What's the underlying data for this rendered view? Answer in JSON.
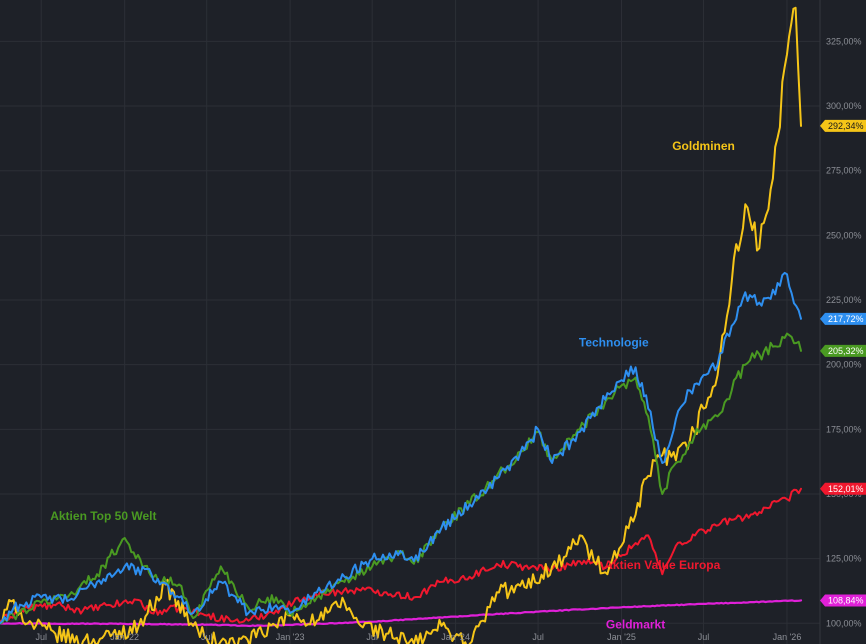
{
  "chart_data": {
    "type": "line",
    "title": "",
    "xlabel": "",
    "ylabel": "",
    "ylim": [
      92,
      341
    ],
    "xlim": [
      "2021-04-01",
      "2026-02-12"
    ],
    "grid": true,
    "y_ticks": [
      100,
      125,
      150,
      175,
      200,
      225,
      250,
      275,
      300,
      325
    ],
    "y_tick_labels": [
      "100,00%",
      "125,00%",
      "150,00%",
      "175,00%",
      "200,00%",
      "225,00%",
      "250,00%",
      "275,00%",
      "300,00%",
      "325,00%"
    ],
    "x_ticks": [
      {
        "date": "2021-07-01",
        "label": "Jul"
      },
      {
        "date": "2022-01-01",
        "label": "Jan '22"
      },
      {
        "date": "2022-07-01",
        "label": "Jul"
      },
      {
        "date": "2023-01-01",
        "label": "Jan '23"
      },
      {
        "date": "2023-07-01",
        "label": "Jul"
      },
      {
        "date": "2024-01-01",
        "label": "Jan '24"
      },
      {
        "date": "2024-07-01",
        "label": "Jul"
      },
      {
        "date": "2025-01-01",
        "label": "Jan '25"
      },
      {
        "date": "2025-07-01",
        "label": "Jul"
      },
      {
        "date": "2026-01-01",
        "label": "Jan '26"
      }
    ],
    "series": [
      {
        "name": "Geldmarkt",
        "color": "#e020d8",
        "last_label": "108,84%",
        "points": [
          [
            "2021-04-01",
            100
          ],
          [
            "2022-01-01",
            99.8
          ],
          [
            "2022-07-01",
            99.5
          ],
          [
            "2022-10-01",
            99
          ],
          [
            "2023-01-01",
            99.4
          ],
          [
            "2023-07-01",
            100.6
          ],
          [
            "2024-01-01",
            102.6
          ],
          [
            "2024-07-01",
            104.5
          ],
          [
            "2025-01-01",
            106.2
          ],
          [
            "2025-07-01",
            107.5
          ],
          [
            "2026-02-01",
            108.84
          ]
        ]
      },
      {
        "name": "Aktien Value Europa",
        "color": "#f0182e",
        "last_label": "152,01%",
        "points": [
          [
            "2021-04-01",
            101
          ],
          [
            "2021-06-01",
            106
          ],
          [
            "2021-08-01",
            107
          ],
          [
            "2021-10-01",
            105
          ],
          [
            "2021-12-01",
            107
          ],
          [
            "2022-02-01",
            109
          ],
          [
            "2022-03-01",
            104
          ],
          [
            "2022-05-01",
            106
          ],
          [
            "2022-07-01",
            103
          ],
          [
            "2022-09-01",
            101
          ],
          [
            "2022-10-01",
            101
          ],
          [
            "2022-12-01",
            105
          ],
          [
            "2023-02-01",
            110
          ],
          [
            "2023-04-01",
            112
          ],
          [
            "2023-06-01",
            113
          ],
          [
            "2023-08-01",
            112
          ],
          [
            "2023-10-01",
            110
          ],
          [
            "2023-12-01",
            116
          ],
          [
            "2024-02-01",
            118
          ],
          [
            "2024-04-01",
            123
          ],
          [
            "2024-06-01",
            122
          ],
          [
            "2024-08-01",
            121
          ],
          [
            "2024-10-01",
            124
          ],
          [
            "2024-12-01",
            122
          ],
          [
            "2025-02-01",
            131
          ],
          [
            "2025-03-01",
            134
          ],
          [
            "2025-04-01",
            119
          ],
          [
            "2025-05-01",
            130
          ],
          [
            "2025-07-01",
            136
          ],
          [
            "2025-09-01",
            140
          ],
          [
            "2025-11-01",
            143
          ],
          [
            "2026-01-01",
            148
          ],
          [
            "2026-02-01",
            152.01
          ]
        ]
      },
      {
        "name": "Goldminen",
        "color": "#f5c518",
        "last_label": "292,34%",
        "points": [
          [
            "2021-04-01",
            100
          ],
          [
            "2021-05-01",
            109
          ],
          [
            "2021-06-01",
            100
          ],
          [
            "2021-08-01",
            96
          ],
          [
            "2021-10-01",
            93
          ],
          [
            "2021-12-01",
            95
          ],
          [
            "2022-02-01",
            99
          ],
          [
            "2022-04-01",
            115
          ],
          [
            "2022-06-01",
            99
          ],
          [
            "2022-07-01",
            94
          ],
          [
            "2022-08-01",
            93
          ],
          [
            "2022-09-01",
            92
          ],
          [
            "2022-11-01",
            96
          ],
          [
            "2023-01-01",
            103
          ],
          [
            "2023-03-01",
            101
          ],
          [
            "2023-05-01",
            108
          ],
          [
            "2023-06-01",
            100
          ],
          [
            "2023-08-01",
            96
          ],
          [
            "2023-10-01",
            92
          ],
          [
            "2023-12-01",
            99
          ],
          [
            "2024-02-01",
            92
          ],
          [
            "2024-03-01",
            101
          ],
          [
            "2024-04-01",
            112
          ],
          [
            "2024-06-01",
            114
          ],
          [
            "2024-08-01",
            122
          ],
          [
            "2024-09-01",
            126
          ],
          [
            "2024-10-01",
            134
          ],
          [
            "2024-11-01",
            124
          ],
          [
            "2024-12-01",
            119
          ],
          [
            "2025-01-01",
            130
          ],
          [
            "2025-02-01",
            142
          ],
          [
            "2025-03-01",
            157
          ],
          [
            "2025-04-01",
            165
          ],
          [
            "2025-05-01",
            163
          ],
          [
            "2025-06-01",
            171
          ],
          [
            "2025-07-01",
            183
          ],
          [
            "2025-08-01",
            196
          ],
          [
            "2025-09-01",
            232
          ],
          [
            "2025-10-01",
            262
          ],
          [
            "2025-11-01",
            245
          ],
          [
            "2025-12-01",
            272
          ],
          [
            "2026-01-01",
            320
          ],
          [
            "2026-01-20",
            338
          ],
          [
            "2026-02-01",
            292.34
          ]
        ]
      },
      {
        "name": "Aktien Top 50 Welt",
        "color": "#4a9a22",
        "last_label": "205,32%",
        "points": [
          [
            "2021-04-01",
            100
          ],
          [
            "2021-05-01",
            103
          ],
          [
            "2021-07-01",
            108
          ],
          [
            "2021-09-01",
            111
          ],
          [
            "2021-11-01",
            119
          ],
          [
            "2022-01-01",
            133
          ],
          [
            "2022-03-01",
            118
          ],
          [
            "2022-05-01",
            115
          ],
          [
            "2022-06-01",
            102
          ],
          [
            "2022-08-01",
            122
          ],
          [
            "2022-10-01",
            106
          ],
          [
            "2022-12-01",
            110
          ],
          [
            "2023-01-01",
            104
          ],
          [
            "2023-03-01",
            110
          ],
          [
            "2023-05-01",
            116
          ],
          [
            "2023-07-01",
            122
          ],
          [
            "2023-09-01",
            127
          ],
          [
            "2023-10-01",
            123
          ],
          [
            "2023-12-01",
            137
          ],
          [
            "2024-02-01",
            146
          ],
          [
            "2024-04-01",
            157
          ],
          [
            "2024-06-01",
            167
          ],
          [
            "2024-07-01",
            174
          ],
          [
            "2024-08-01",
            163
          ],
          [
            "2024-10-01",
            175
          ],
          [
            "2024-12-01",
            187
          ],
          [
            "2025-01-01",
            192
          ],
          [
            "2025-02-01",
            195
          ],
          [
            "2025-03-01",
            180
          ],
          [
            "2025-04-01",
            150
          ],
          [
            "2025-05-01",
            162
          ],
          [
            "2025-06-01",
            170
          ],
          [
            "2025-07-01",
            177
          ],
          [
            "2025-08-01",
            180
          ],
          [
            "2025-09-01",
            190
          ],
          [
            "2025-10-01",
            200
          ],
          [
            "2025-11-01",
            204
          ],
          [
            "2025-12-01",
            207
          ],
          [
            "2026-01-01",
            212
          ],
          [
            "2026-02-01",
            205.32
          ]
        ]
      },
      {
        "name": "Technologie",
        "color": "#2e8ff0",
        "last_label": "217,72%",
        "points": [
          [
            "2021-04-01",
            100
          ],
          [
            "2021-05-01",
            106
          ],
          [
            "2021-07-01",
            110
          ],
          [
            "2021-09-01",
            109
          ],
          [
            "2021-11-01",
            116
          ],
          [
            "2022-01-01",
            122
          ],
          [
            "2022-03-01",
            119
          ],
          [
            "2022-05-01",
            110
          ],
          [
            "2022-06-01",
            104
          ],
          [
            "2022-08-01",
            116
          ],
          [
            "2022-10-01",
            104
          ],
          [
            "2022-12-01",
            107
          ],
          [
            "2023-01-01",
            104
          ],
          [
            "2023-03-01",
            112
          ],
          [
            "2023-05-01",
            118
          ],
          [
            "2023-07-01",
            125
          ],
          [
            "2023-09-01",
            128
          ],
          [
            "2023-10-01",
            124
          ],
          [
            "2023-12-01",
            137
          ],
          [
            "2024-02-01",
            146
          ],
          [
            "2024-04-01",
            156
          ],
          [
            "2024-06-01",
            167
          ],
          [
            "2024-07-01",
            175
          ],
          [
            "2024-08-01",
            162
          ],
          [
            "2024-10-01",
            174
          ],
          [
            "2024-12-01",
            189
          ],
          [
            "2025-01-01",
            194
          ],
          [
            "2025-02-01",
            199
          ],
          [
            "2025-03-01",
            183
          ],
          [
            "2025-04-01",
            162
          ],
          [
            "2025-05-01",
            179
          ],
          [
            "2025-06-01",
            190
          ],
          [
            "2025-07-01",
            196
          ],
          [
            "2025-08-01",
            200
          ],
          [
            "2025-09-01",
            215
          ],
          [
            "2025-10-01",
            228
          ],
          [
            "2025-11-01",
            224
          ],
          [
            "2025-12-01",
            229
          ],
          [
            "2026-01-01",
            235
          ],
          [
            "2026-02-01",
            217.72
          ]
        ]
      }
    ],
    "annotations": [
      {
        "text": "Goldminen",
        "series": "Goldminen",
        "date": "2025-07-01",
        "y": 283
      },
      {
        "text": "Technologie",
        "series": "Technologie",
        "date": "2024-12-15",
        "y": 207
      },
      {
        "text": "Aktien Top 50 Welt",
        "series": "Aktien Top 50 Welt",
        "date": "2021-11-15",
        "y": 140
      },
      {
        "text": "Aktien Value Europa",
        "series": "Aktien Value Europa",
        "date": "2025-04-01",
        "y": 121
      },
      {
        "text": "Geldmarkt",
        "series": "Geldmarkt",
        "date": "2025-02-01",
        "y": 98
      }
    ]
  }
}
